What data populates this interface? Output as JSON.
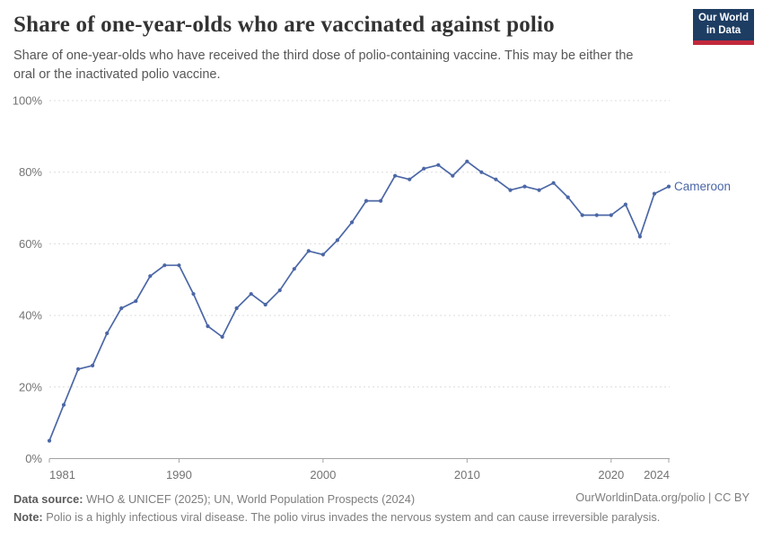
{
  "header": {
    "title": "Share of one-year-olds who are vaccinated against polio",
    "subtitle": "Share of one-year-olds who have received the third dose of polio-containing vaccine. This may be either the oral or the inactivated polio vaccine.",
    "logo": {
      "line1": "Our World",
      "line2": "in Data",
      "bg_color": "#1d3d63",
      "bar_color": "#c2293c"
    }
  },
  "chart_data": {
    "type": "line",
    "title": "Share of one-year-olds who are vaccinated against polio",
    "entity": "Cameroon",
    "unit": "%",
    "x": [
      1981,
      1982,
      1983,
      1984,
      1985,
      1986,
      1987,
      1988,
      1989,
      1990,
      1991,
      1992,
      1993,
      1994,
      1995,
      1996,
      1997,
      1998,
      1999,
      2000,
      2001,
      2002,
      2003,
      2004,
      2005,
      2006,
      2007,
      2008,
      2009,
      2010,
      2011,
      2012,
      2013,
      2014,
      2015,
      2016,
      2017,
      2018,
      2019,
      2020,
      2021,
      2022,
      2023,
      2024
    ],
    "values": [
      5,
      15,
      25,
      26,
      35,
      42,
      44,
      51,
      54,
      54,
      46,
      37,
      34,
      42,
      46,
      43,
      47,
      53,
      58,
      57,
      61,
      66,
      72,
      72,
      79,
      78,
      81,
      82,
      79,
      83,
      80,
      78,
      75,
      76,
      75,
      77,
      73,
      68,
      68,
      68,
      71,
      62,
      74,
      76
    ],
    "x_ticks": [
      1981,
      1990,
      2000,
      2010,
      2020,
      2024
    ],
    "y_ticks": [
      0,
      20,
      40,
      60,
      80,
      100
    ],
    "y_tick_suffix": "%",
    "xlim": [
      1981,
      2024
    ],
    "ylim": [
      0,
      100
    ],
    "grid": true,
    "line_color": "#4b67a6",
    "entity_label_color": "#4b67a6",
    "legend_position": "end-of-line-label"
  },
  "footer": {
    "source_label": "Data source:",
    "source_text": " WHO & UNICEF (2025); UN, World Population Prospects (2024)",
    "license": "OurWorldinData.org/polio | CC BY",
    "note_label": "Note:",
    "note_text": " Polio is a highly infectious viral disease. The polio virus invades the nervous system and can cause irreversible paralysis."
  }
}
